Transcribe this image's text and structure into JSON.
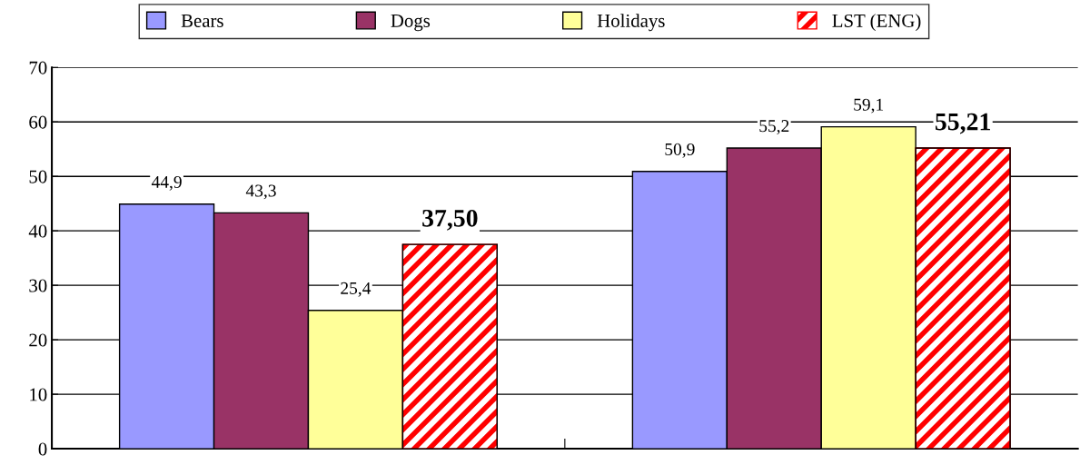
{
  "chart_data": {
    "type": "bar",
    "categories": [
      null,
      null
    ],
    "series": [
      {
        "name": "Bears",
        "color": "#9999ff",
        "values": [
          44.9,
          50.9
        ],
        "value_labels": [
          "44,9",
          "50,9"
        ]
      },
      {
        "name": "Dogs",
        "color": "#993366",
        "values": [
          43.3,
          55.2
        ],
        "value_labels": [
          "43,3",
          "55,2"
        ]
      },
      {
        "name": "Holidays",
        "color": "#ffff99",
        "values": [
          25.4,
          59.1
        ],
        "value_labels": [
          "25,4",
          "59,1"
        ]
      },
      {
        "name": "LST (ENG)",
        "color": "#ff0000",
        "values": [
          37.5,
          55.21
        ],
        "value_labels": [
          "37,50",
          "55,21"
        ]
      }
    ],
    "ylim": [
      0,
      70
    ],
    "yticks": [
      0,
      10,
      20,
      30,
      40,
      50,
      60,
      70
    ],
    "grid": "y",
    "legend": "top"
  }
}
